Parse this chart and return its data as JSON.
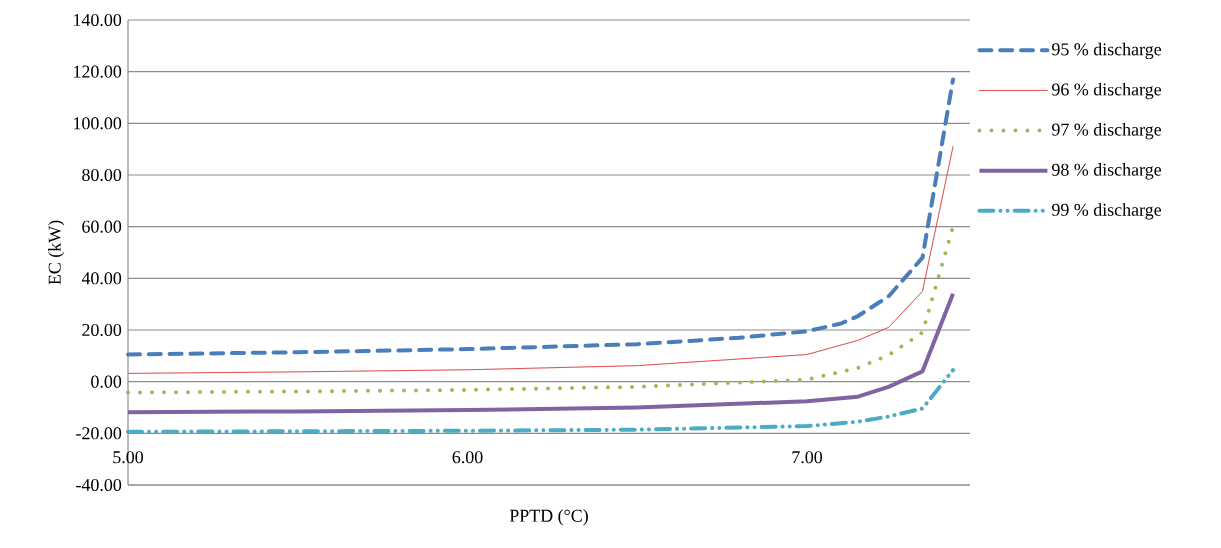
{
  "chart_data": {
    "type": "line",
    "xlabel": "PPTD (°C)",
    "ylabel": "EC (kW)",
    "xlim": [
      5,
      7.48
    ],
    "ylim": [
      -40,
      140
    ],
    "xticks": [
      {
        "value": 5,
        "label": "5.00"
      },
      {
        "value": 6,
        "label": "6.00"
      },
      {
        "value": 7,
        "label": "7.00"
      }
    ],
    "yticks": [
      {
        "value": -40,
        "label": "-40.00"
      },
      {
        "value": -20,
        "label": "-20.00"
      },
      {
        "value": 0,
        "label": "0.00"
      },
      {
        "value": 20,
        "label": "20.00"
      },
      {
        "value": 40,
        "label": "40.00"
      },
      {
        "value": 60,
        "label": "60.00"
      },
      {
        "value": 80,
        "label": "80.00"
      },
      {
        "value": 100,
        "label": "100.00"
      },
      {
        "value": 120,
        "label": "120.00"
      },
      {
        "value": 140,
        "label": "140.00"
      }
    ],
    "grid": "y",
    "legend": "right",
    "marker": "none",
    "series": [
      {
        "name": "95 % discharge",
        "color": "#4a7ebb",
        "line_style": "dashed",
        "x": [
          5,
          5.5,
          6,
          6.5,
          6.8,
          7,
          7.1,
          7.15,
          7.24,
          7.34,
          7.43
        ],
        "values": [
          10.5,
          11.4,
          12.6,
          14.5,
          17,
          19.5,
          22.5,
          25.4,
          33,
          48,
          117
        ]
      },
      {
        "name": "96 % discharge",
        "color": "#e0504c",
        "line_style": "dotted",
        "x": [
          5,
          5.5,
          6,
          6.5,
          7,
          7.15,
          7.24,
          7.34,
          7.43
        ],
        "values": [
          3.2,
          3.8,
          4.6,
          6.2,
          10.5,
          16,
          21,
          35,
          91
        ]
      },
      {
        "name": "97 % discharge",
        "color": "#9bbb59",
        "line_style": "dotted",
        "x": [
          5,
          5.5,
          6,
          6.5,
          7,
          7.15,
          7.24,
          7.34,
          7.43
        ],
        "values": [
          -4.2,
          -3.8,
          -3.2,
          -2,
          0.8,
          5.3,
          10.3,
          19,
          60
        ]
      },
      {
        "name": "98 % discharge",
        "color": "#8064a2",
        "line_style": "solid",
        "x": [
          5,
          5.5,
          6,
          6.5,
          7,
          7.15,
          7.24,
          7.34,
          7.43
        ],
        "values": [
          -11.8,
          -11.5,
          -11,
          -10,
          -7.6,
          -5.8,
          -2,
          4,
          34
        ]
      },
      {
        "name": "99 % discharge",
        "color": "#4bacc6",
        "line_style": "dashdot",
        "x": [
          5,
          6,
          6.5,
          7,
          7.15,
          7.24,
          7.34,
          7.43
        ],
        "values": [
          -19.4,
          -19,
          -18.6,
          -17.2,
          -15.5,
          -13.5,
          -10.4,
          4.5
        ]
      }
    ]
  }
}
